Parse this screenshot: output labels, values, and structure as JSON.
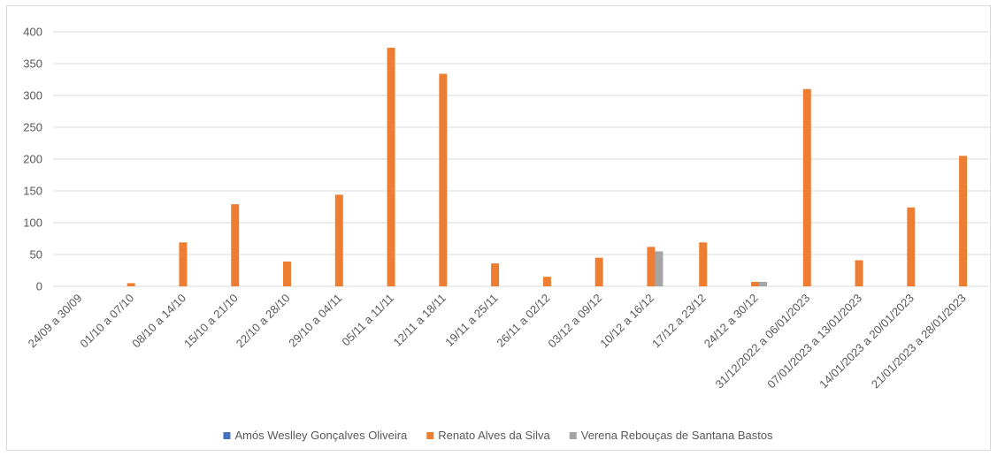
{
  "chart_data": {
    "type": "bar",
    "categories": [
      "24/09 a 30/09",
      "01/10 a 07/10",
      "08/10 a 14/10",
      "15/10 a 21/10",
      "22/10 a 28/10",
      "29/10 a 04/11",
      "05/11 a 11/11",
      "12/11 a 18/11",
      "19/11 a 25/11",
      "26/11 a 02/12",
      "03/12 a 09/12",
      "10/12 a 16/12",
      "17/12 a 23/12",
      "24/12 a 30/12",
      "31/12/2022 a 06/01/2023",
      "07/01/2023 a 13/01/2023",
      "14/01/2023 a 20/01/2023",
      "21/01/2023 a 28/01/2023"
    ],
    "series": [
      {
        "name": "Amós Weslley Gonçalves Oliveira",
        "color": "#4472c4",
        "values": [
          0,
          0,
          0,
          0,
          0,
          0,
          0,
          0,
          0,
          0,
          0,
          0,
          0,
          0,
          0,
          0,
          0,
          0
        ]
      },
      {
        "name": "Renato Alves da Silva",
        "color": "#ed7d31",
        "values": [
          0,
          5,
          69,
          129,
          39,
          144,
          375,
          334,
          36,
          15,
          45,
          62,
          69,
          7,
          310,
          41,
          124,
          205
        ]
      },
      {
        "name": "Verena Rebouças de Santana Bastos",
        "color": "#a5a5a5",
        "values": [
          0,
          0,
          0,
          0,
          0,
          0,
          0,
          0,
          0,
          0,
          0,
          55,
          0,
          7,
          0,
          0,
          0,
          0
        ]
      }
    ],
    "yticks": [
      "0",
      "50",
      "100",
      "150",
      "200",
      "250",
      "300",
      "350",
      "400"
    ],
    "ylim": [
      0,
      400
    ],
    "grid": true,
    "gridline_color": "#d9d9d9",
    "legend_position": "bottom"
  }
}
